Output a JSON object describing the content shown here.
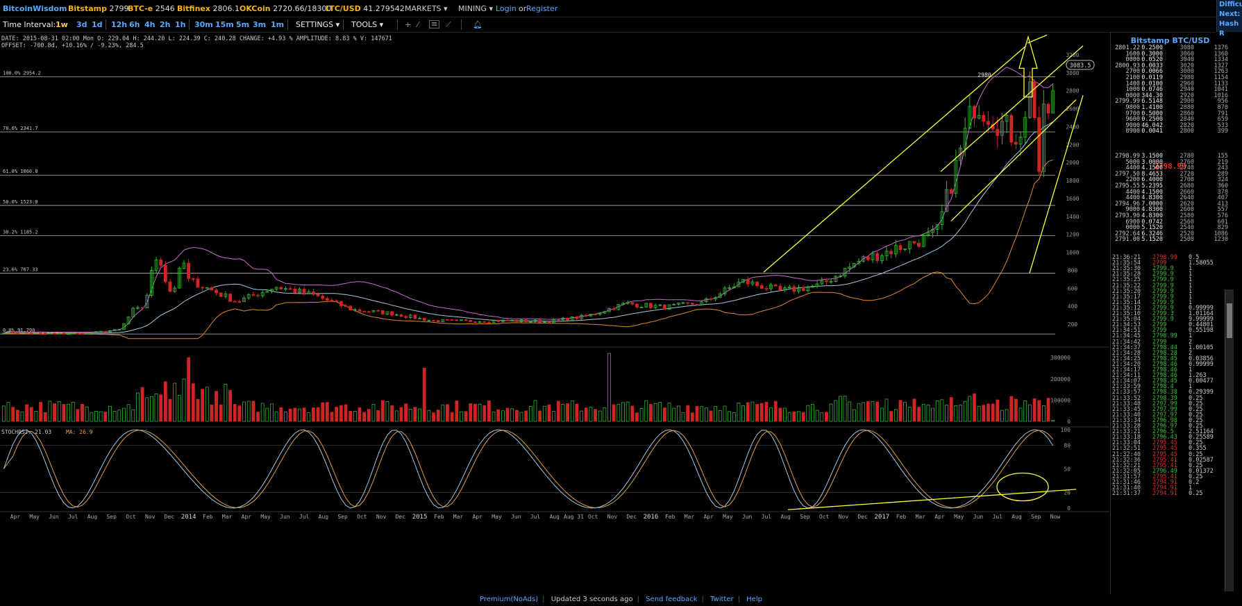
{
  "header": {
    "brand": "BitcoinWisdom",
    "exchanges": [
      {
        "name": "Bitstamp",
        "price": "2799"
      },
      {
        "name": "BTC-e",
        "price": "2546"
      },
      {
        "name": "Bitfinex",
        "price": "2806.1"
      },
      {
        "name": "OKCoin",
        "price": "2720.66/18300"
      },
      {
        "name": "LTC/USD",
        "price": "41.279542"
      }
    ],
    "menus": [
      "MARKETS",
      "MINING"
    ],
    "login": "Login",
    "or": "or",
    "register": "Register",
    "difficulty": [
      "Difficu",
      "Next:",
      "Hash R"
    ]
  },
  "toolbar": {
    "label": "Time Interval:",
    "intervals": [
      "1w",
      "3d",
      "1d",
      "12h",
      "6h",
      "4h",
      "2h",
      "1h",
      "30m",
      "15m",
      "5m",
      "3m",
      "1m"
    ],
    "selected": "1w",
    "settings": "SETTINGS",
    "tools": "TOOLS"
  },
  "info": {
    "line1": "DATE: 2015-08-31 02:00 Mon   O: 229.04   H: 244.20   L: 224.39   C: 240.28   CHANGE: +4.93 %   AMPLITUDE: 8.83 %   V: 147671",
    "line2": "OFFSET: -700.8d, +10.16% / -9.23%, 284.5"
  },
  "fib": [
    {
      "label": "100.0% 2954.2",
      "value": 2954.2
    },
    {
      "label": "78.6% 2341.7",
      "value": 2341.7
    },
    {
      "label": "61.8% 1860.8",
      "value": 1860.8
    },
    {
      "label": "50.0% 1523.0",
      "value": 1523.0
    },
    {
      "label": "38.2% 1185.2",
      "value": 1185.2
    },
    {
      "label": "23.6% 767.33",
      "value": 767.33
    },
    {
      "label": "0.0% 91.790",
      "value": 91.79
    }
  ],
  "price_ticks": [
    3200,
    3000,
    2800,
    2600,
    2400,
    2200,
    2000,
    1800,
    1600,
    1400,
    1200,
    1000,
    800,
    600,
    400,
    200
  ],
  "current_price_label": "3083.5",
  "peak_label": "2980",
  "volume_ticks": [
    "300000",
    "200000",
    "100000",
    "0"
  ],
  "stoch": {
    "label": "STOCHRSI: 21.03",
    "ma": "MA: 26.9",
    "ticks": [
      "100",
      "80",
      "50",
      "20",
      "0"
    ]
  },
  "time_labels": [
    "Apr",
    "May",
    "Jun",
    "Jul",
    "Aug",
    "Sep",
    "Oct",
    "Nov",
    "Dec",
    "2014",
    "Feb",
    "Mar",
    "Apr",
    "May",
    "Jun",
    "Jul",
    "Aug",
    "Sep",
    "Oct",
    "Nov",
    "Dec",
    "2015",
    "Feb",
    "Mar",
    "Apr",
    "May",
    "Jun",
    "Jul",
    "Aug",
    "Aug 31",
    "Oct",
    "Nov",
    "Dec",
    "2016",
    "Feb",
    "Mar",
    "Apr",
    "May",
    "Jun",
    "Jul",
    "Aug",
    "Sep",
    "Oct",
    "Nov",
    "Dec",
    "2017",
    "Feb",
    "Mar",
    "Apr",
    "May",
    "Jun",
    "Jul",
    "Aug",
    "Sep",
    "Now"
  ],
  "chart_data": {
    "type": "candlestick",
    "title": "Bitstamp BTC/USD",
    "interval": "1w",
    "ylim": [
      0,
      3300
    ],
    "approx_close_by_month": {
      "categories": [
        "2013-04",
        "2013-06",
        "2013-08",
        "2013-10",
        "2013-12",
        "2014-02",
        "2014-04",
        "2014-06",
        "2014-08",
        "2014-10",
        "2014-12",
        "2015-02",
        "2015-04",
        "2015-06",
        "2015-08",
        "2015-10",
        "2015-12",
        "2016-02",
        "2016-04",
        "2016-06",
        "2016-08",
        "2016-10",
        "2016-12",
        "2017-02",
        "2017-04",
        "2017-06",
        "2017-07",
        "2017-08"
      ],
      "values": [
        110,
        100,
        95,
        140,
        800,
        650,
        450,
        620,
        520,
        360,
        320,
        240,
        235,
        240,
        230,
        290,
        430,
        390,
        440,
        680,
        570,
        630,
        900,
        1050,
        1200,
        2700,
        2300,
        2799
      ]
    },
    "indicators": [
      "Bollinger bands (upper, middle, lower)",
      "Fibonacci retracement",
      "Volume",
      "StochRSI"
    ]
  },
  "orderbook": {
    "title": "Bitstamp BTC/USD",
    "asks": [
      [
        "2801.22",
        "0.2500",
        "3080",
        "1376"
      ],
      [
        "1600",
        "0.3000",
        "3060",
        "1360"
      ],
      [
        "0000",
        "0.0520",
        "3040",
        "1334"
      ],
      [
        "2800.93",
        "0.0033",
        "3020",
        "1327"
      ],
      [
        "2700",
        "0.0066",
        "3000",
        "1263"
      ],
      [
        "2100",
        "0.0119",
        "2980",
        "1154"
      ],
      [
        "1400",
        "0.0100",
        "2960",
        "1133"
      ],
      [
        "1000",
        "0.0746",
        "2940",
        "1041"
      ],
      [
        "0000",
        "344.30",
        "2920",
        "1016"
      ],
      [
        "2799.99",
        "6.5148",
        "2900",
        "956"
      ],
      [
        "9800",
        "1.4100",
        "2880",
        "870"
      ],
      [
        "9700",
        "0.5000",
        "2860",
        "791"
      ],
      [
        "9600",
        "0.2500",
        "2840",
        "659"
      ],
      [
        "9000",
        "46.042",
        "2820",
        "533"
      ],
      [
        "8900",
        "0.0041",
        "2800",
        "399"
      ]
    ],
    "last": "2798.99",
    "bids": [
      [
        "2798.99",
        "3.1500",
        "2780",
        "155"
      ],
      [
        "5000",
        "3.0000",
        "2760",
        "219"
      ],
      [
        "4400",
        "4.1500",
        "2740",
        "243"
      ],
      [
        "2797.50",
        "8.4653",
        "2720",
        "289"
      ],
      [
        "2200",
        "6.4000",
        "2700",
        "324"
      ],
      [
        "2795.55",
        "5.2395",
        "2680",
        "360"
      ],
      [
        "4400",
        "4.1500",
        "2660",
        "378"
      ],
      [
        "4400",
        "4.8300",
        "2640",
        "407"
      ],
      [
        "2794.96",
        "7.0000",
        "2620",
        "413"
      ],
      [
        "9000",
        "4.8300",
        "2600",
        "557"
      ],
      [
        "2793.90",
        "4.8300",
        "2580",
        "576"
      ],
      [
        "6900",
        "0.0742",
        "2560",
        "601"
      ],
      [
        "0000",
        "5.1520",
        "2540",
        "829"
      ],
      [
        "2792.64",
        "6.3246",
        "2520",
        "1086"
      ],
      [
        "2791.00",
        "5.1520",
        "2500",
        "1230"
      ]
    ]
  },
  "trades": [
    [
      "21:36:21",
      "2798.99",
      "0.5",
      "r"
    ],
    [
      "21:35:54",
      "2799",
      "1.58055",
      "r"
    ],
    [
      "21:35:30",
      "2799.9",
      "1",
      "g"
    ],
    [
      "21:35:28",
      "2799.9",
      "1",
      "g"
    ],
    [
      "21:35:25",
      "2799.9",
      "1",
      "g"
    ],
    [
      "21:35:22",
      "2799.9",
      "1",
      "g"
    ],
    [
      "21:35:20",
      "2799.9",
      "1",
      "g"
    ],
    [
      "21:35:17",
      "2799.9",
      "1",
      "g"
    ],
    [
      "21:35:14",
      "2799.9",
      "1",
      "g"
    ],
    [
      "21:35:12",
      "2799.9",
      "0.99999",
      "g"
    ],
    [
      "21:35:10",
      "2799.3",
      "1.01164",
      "g"
    ],
    [
      "21:35:04",
      "2799.9",
      "9.99999",
      "g"
    ],
    [
      "21:34:53",
      "2799",
      "0.44801",
      "g"
    ],
    [
      "21:34:51",
      "2799",
      "0.55198",
      "g"
    ],
    [
      "21:34:45",
      "2798.99",
      "1",
      "g"
    ],
    [
      "21:34:42",
      "2799",
      "2",
      "g"
    ],
    [
      "21:34:37",
      "2798.44",
      "1.00105",
      "g"
    ],
    [
      "21:34:28",
      "2798.28",
      "2",
      "g"
    ],
    [
      "21:34:25",
      "2798.45",
      "0.03856",
      "g"
    ],
    [
      "21:34:20",
      "2798.46",
      "0.99999",
      "g"
    ],
    [
      "21:34:17",
      "2798.46",
      "1",
      "g"
    ],
    [
      "21:34:11",
      "2798.46",
      "1.263",
      "g"
    ],
    [
      "21:34:07",
      "2798.45",
      "0.00477",
      "g"
    ],
    [
      "21:33:59",
      "2798.4",
      "1",
      "g"
    ],
    [
      "21:33:57",
      "2798.38",
      "0.29399",
      "g"
    ],
    [
      "21:33:52",
      "2798.39",
      "0.25",
      "g"
    ],
    [
      "21:33:48",
      "2797.99",
      "0.25",
      "g"
    ],
    [
      "21:33:45",
      "2797.99",
      "0.25",
      "g"
    ],
    [
      "21:33:40",
      "2797.97",
      "0.25",
      "g"
    ],
    [
      "21:33:34",
      "2796.98",
      "0.25",
      "g"
    ],
    [
      "21:33:28",
      "2796.97",
      "0.25",
      "g"
    ],
    [
      "21:33:21",
      "2796.5",
      "2.51164",
      "g"
    ],
    [
      "21:33:18",
      "2796.43",
      "0.25589",
      "g"
    ],
    [
      "21:33:04",
      "2795.45",
      "0.25",
      "r"
    ],
    [
      "21:32:51",
      "2795.45",
      "0.355",
      "r"
    ],
    [
      "21:32:40",
      "2795.45",
      "0.25",
      "r"
    ],
    [
      "21:32:36",
      "2795.41",
      "0.02587",
      "r"
    ],
    [
      "21:32:21",
      "2795.41",
      "0.25",
      "r"
    ],
    [
      "21:32:05",
      "2796.49",
      "0.01372",
      "g"
    ],
    [
      "21:31:57",
      "2795.41",
      "0.25",
      "r"
    ],
    [
      "21:31:46",
      "2794.91",
      "0.2",
      "r"
    ],
    [
      "21:31:40",
      "2794.91",
      "1",
      "r"
    ],
    [
      "21:31:37",
      "2794.91",
      "0.25",
      "r"
    ]
  ],
  "footer": [
    "Premium(NoAds)",
    "Updated 3 seconds ago",
    "Send feedback",
    "Twitter",
    "Help"
  ],
  "colors": {
    "up": "#35b535",
    "down": "#d02525",
    "bb_upper": "#c86bd1",
    "bb_mid": "#9ecbe8",
    "bb_lower": "#e08a2a",
    "annot": "#ffff33"
  }
}
